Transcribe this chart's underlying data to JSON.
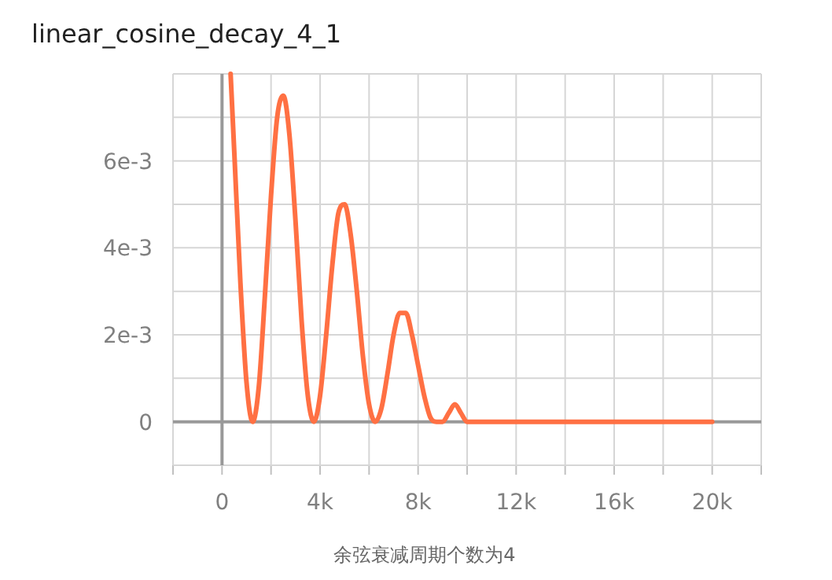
{
  "chart_data": {
    "type": "line",
    "title": "linear_cosine_decay_4_1",
    "annotations": [
      "余弦衰减周期个数为4"
    ],
    "x": [
      350,
      500,
      750,
      1000,
      1250,
      1500,
      1750,
      2000,
      2250,
      2500,
      2750,
      3000,
      3250,
      3500,
      3750,
      4000,
      4250,
      4500,
      4750,
      5000,
      5250,
      5500,
      5750,
      6000,
      6250,
      6500,
      6750,
      7000,
      7250,
      7500,
      7750,
      8000,
      8250,
      8500,
      8750,
      9000,
      9250,
      9500,
      9750,
      10000,
      20000
    ],
    "series": [
      {
        "color": "#ff7043",
        "values": [
          0.008,
          0.0062,
          0.0032,
          0.0009,
          0,
          0.0008,
          0.0029,
          0.0052,
          0.007,
          0.0075,
          0.0066,
          0.0046,
          0.0023,
          0.0006,
          0,
          0.0006,
          0.002,
          0.0036,
          0.0048,
          0.005,
          0.0043,
          0.003,
          0.0015,
          0.0004,
          0,
          0.0003,
          0.0011,
          0.002,
          0.0025,
          0.0025,
          0.002,
          0.0013,
          0.0006,
          0.0001,
          0,
          0,
          0.0002,
          0.0004,
          0.0002,
          0,
          0
        ]
      }
    ],
    "xlim": [
      -2000,
      22000
    ],
    "ylim": [
      -0.001,
      0.008
    ],
    "xticks": [
      {
        "value": -2000,
        "label": null
      },
      0,
      {
        "value": 2000,
        "label": null
      },
      {
        "value": 4000,
        "label": "4k"
      },
      {
        "value": 6000,
        "label": null
      },
      {
        "value": 8000,
        "label": "8k"
      },
      {
        "value": 10000,
        "label": null
      },
      {
        "value": 12000,
        "label": "12k"
      },
      {
        "value": 14000,
        "label": null
      },
      {
        "value": 16000,
        "label": "16k"
      },
      {
        "value": 18000,
        "label": null
      },
      {
        "value": 20000,
        "label": "20k"
      },
      {
        "value": 22000,
        "label": null
      }
    ],
    "yticks": [
      {
        "value": -0.001,
        "label": null
      },
      0,
      {
        "value": 0.001,
        "label": null
      },
      {
        "value": 0.002,
        "label": "2e-3"
      },
      {
        "value": 0.003,
        "label": null
      },
      {
        "value": 0.004,
        "label": "4e-3"
      },
      {
        "value": 0.005,
        "label": null
      },
      {
        "value": 0.006,
        "label": "6e-3"
      },
      {
        "value": 0.007,
        "label": null
      },
      {
        "value": 0.008,
        "label": null
      }
    ],
    "grid": true,
    "marker": "none",
    "line_style": "solid"
  }
}
